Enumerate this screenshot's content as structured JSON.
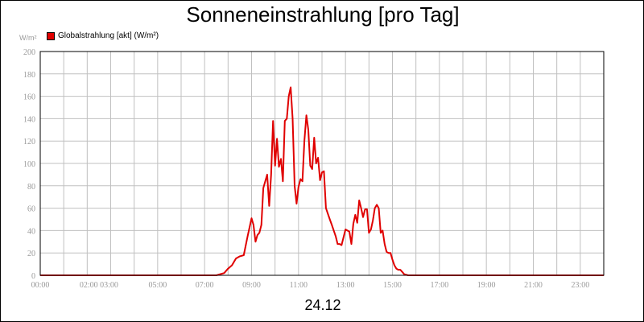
{
  "chart_data": {
    "type": "line",
    "title": "Sonneneinstrahlung [pro Tag]",
    "unit_label": "W/m²",
    "date_label": "24.12",
    "legend": [
      {
        "name": "Globalstrahlung [akt] (W/m²)",
        "color": "#e00000"
      }
    ],
    "legend_placement": "top-left",
    "grid": true,
    "ylim": [
      0,
      200
    ],
    "yticks": [
      0,
      20,
      40,
      60,
      80,
      100,
      120,
      140,
      160,
      180,
      200
    ],
    "xlim": [
      "00:00",
      "24:00"
    ],
    "xtick_labels": [
      "00:00",
      "02:00 03:00",
      "05:00",
      "07:00",
      "09:00",
      "11:00",
      "13:00",
      "15:00",
      "17:00",
      "19:00",
      "21:00",
      "23:00"
    ],
    "series": [
      {
        "name": "Globalstrahlung [akt] (W/m²)",
        "color": "#e00000",
        "x": [
          "00:00",
          "07:30",
          "07:50",
          "08:00",
          "08:10",
          "08:20",
          "08:30",
          "08:40",
          "08:50",
          "09:00",
          "09:05",
          "09:10",
          "09:15",
          "09:20",
          "09:25",
          "09:30",
          "09:40",
          "09:45",
          "09:50",
          "09:55",
          "10:00",
          "10:05",
          "10:10",
          "10:15",
          "10:20",
          "10:25",
          "10:30",
          "10:35",
          "10:40",
          "10:45",
          "10:50",
          "10:55",
          "11:00",
          "11:05",
          "11:10",
          "11:15",
          "11:20",
          "11:25",
          "11:30",
          "11:35",
          "11:40",
          "11:45",
          "11:50",
          "11:55",
          "12:00",
          "12:05",
          "12:10",
          "12:15",
          "12:20",
          "12:25",
          "12:30",
          "12:35",
          "12:40",
          "12:45",
          "12:50",
          "13:00",
          "13:05",
          "13:10",
          "13:15",
          "13:20",
          "13:25",
          "13:30",
          "13:35",
          "13:40",
          "13:45",
          "13:50",
          "13:55",
          "14:00",
          "14:05",
          "14:10",
          "14:15",
          "14:20",
          "14:25",
          "14:30",
          "14:35",
          "14:40",
          "14:45",
          "14:50",
          "14:55",
          "15:00",
          "15:05",
          "15:10",
          "15:15",
          "15:20",
          "15:25",
          "15:30",
          "15:40",
          "15:50",
          "16:00",
          "16:10",
          "16:20",
          "16:30",
          "16:40",
          "16:50",
          "17:00",
          "24:00"
        ],
        "values": [
          0,
          0,
          2,
          6,
          9,
          15,
          17,
          18,
          35,
          51,
          45,
          30,
          36,
          38,
          45,
          78,
          90,
          62,
          90,
          138,
          98,
          122,
          97,
          104,
          84,
          138,
          140,
          160,
          168,
          140,
          80,
          64,
          79,
          86,
          84,
          120,
          143,
          130,
          98,
          95,
          123,
          100,
          105,
          85,
          92,
          93,
          60,
          55,
          50,
          45,
          40,
          35,
          28,
          28,
          27,
          41,
          40,
          39,
          28,
          46,
          54,
          47,
          67,
          60,
          52,
          59,
          59,
          38,
          41,
          49,
          60,
          63,
          60,
          38,
          40,
          28,
          21,
          20,
          20,
          14,
          9,
          6,
          5,
          5,
          3,
          1,
          0,
          0,
          0,
          0,
          0,
          0,
          0,
          0,
          0,
          0
        ]
      }
    ]
  }
}
